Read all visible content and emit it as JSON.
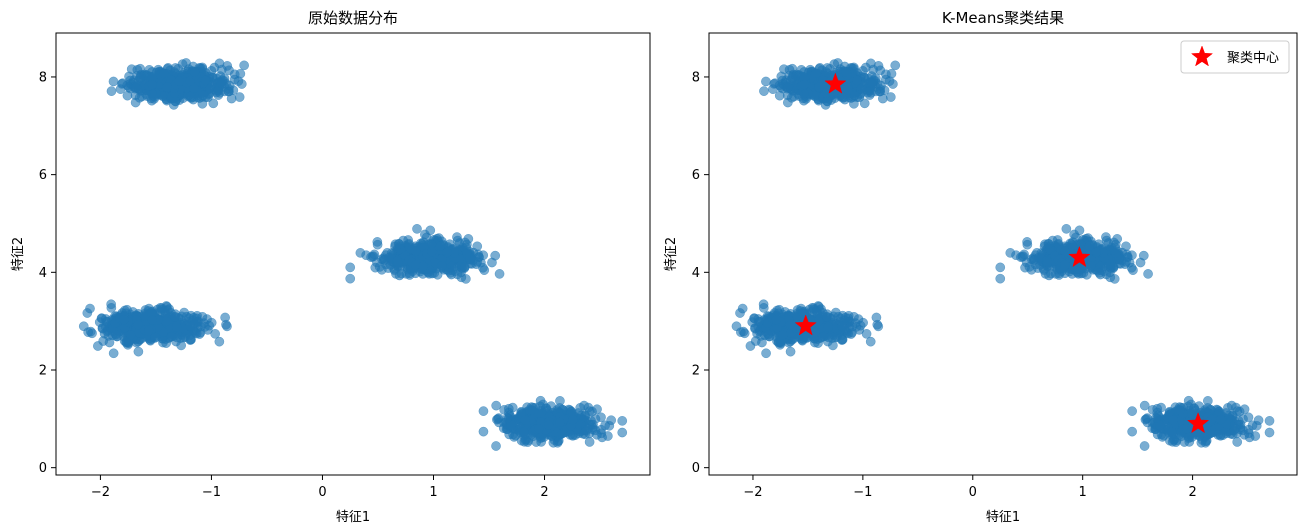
{
  "chart_data": [
    {
      "type": "scatter",
      "title": "原始数据分布",
      "xlabel": "特征1",
      "ylabel": "特征2",
      "xlim": [
        -2.4,
        2.95
      ],
      "ylim": [
        -0.15,
        8.9
      ],
      "x_ticks": [
        -2,
        -1,
        0,
        1,
        2
      ],
      "y_ticks": [
        0,
        2,
        4,
        6,
        8
      ],
      "grid": false,
      "point_color": "#1f77b4",
      "clusters": [
        {
          "center": [
            -1.3,
            7.85
          ],
          "count": 500,
          "spread": [
            0.22,
            0.16
          ],
          "x_range": [
            -1.9,
            -0.55
          ],
          "y_range": [
            7.25,
            8.5
          ]
        },
        {
          "center": [
            0.95,
            4.3
          ],
          "count": 500,
          "spread": [
            0.22,
            0.16
          ],
          "x_range": [
            0.25,
            1.75
          ],
          "y_range": [
            3.65,
            4.95
          ]
        },
        {
          "center": [
            -1.55,
            2.9
          ],
          "count": 500,
          "spread": [
            0.22,
            0.16
          ],
          "x_range": [
            -2.15,
            -0.85
          ],
          "y_range": [
            2.2,
            3.55
          ]
        },
        {
          "center": [
            2.05,
            0.9
          ],
          "count": 500,
          "spread": [
            0.22,
            0.16
          ],
          "x_range": [
            1.45,
            2.7
          ],
          "y_range": [
            0.3,
            1.5
          ]
        }
      ]
    },
    {
      "type": "scatter",
      "title": "K-Means聚类结果",
      "xlabel": "特征1",
      "ylabel": "特征2",
      "xlim": [
        -2.4,
        2.95
      ],
      "ylim": [
        -0.15,
        8.9
      ],
      "x_ticks": [
        -2,
        -1,
        0,
        1,
        2
      ],
      "y_ticks": [
        0,
        2,
        4,
        6,
        8
      ],
      "grid": false,
      "point_color": "#1f77b4",
      "clusters": [
        {
          "center": [
            -1.3,
            7.85
          ],
          "count": 500,
          "spread": [
            0.22,
            0.16
          ],
          "x_range": [
            -1.9,
            -0.55
          ],
          "y_range": [
            7.25,
            8.5
          ]
        },
        {
          "center": [
            0.95,
            4.3
          ],
          "count": 500,
          "spread": [
            0.22,
            0.16
          ],
          "x_range": [
            0.25,
            1.75
          ],
          "y_range": [
            3.65,
            4.95
          ]
        },
        {
          "center": [
            -1.55,
            2.9
          ],
          "count": 500,
          "spread": [
            0.22,
            0.16
          ],
          "x_range": [
            -2.15,
            -0.85
          ],
          "y_range": [
            2.2,
            3.55
          ]
        },
        {
          "center": [
            2.05,
            0.9
          ],
          "count": 500,
          "spread": [
            0.22,
            0.16
          ],
          "x_range": [
            1.45,
            2.7
          ],
          "y_range": [
            0.3,
            1.5
          ]
        }
      ],
      "centroids": {
        "name": "聚类中心",
        "color": "#ff0000",
        "x": [
          -1.25,
          0.97,
          -1.52,
          2.05
        ],
        "y": [
          7.85,
          4.3,
          2.9,
          0.9
        ]
      },
      "legend_position": "top-right"
    }
  ]
}
